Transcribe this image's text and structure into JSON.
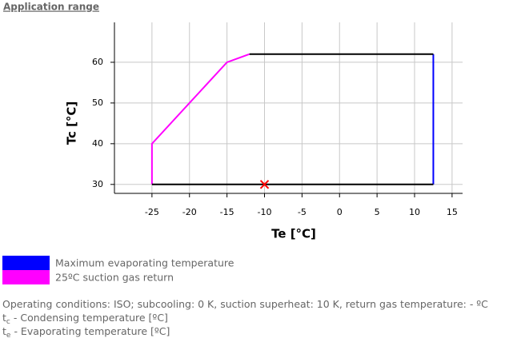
{
  "chart_data": {
    "type": "line",
    "title": "Application range",
    "x_label": "Te [°C]",
    "y_label": "Tc [°C]",
    "xlim": [
      -30,
      16.4
    ],
    "ylim": [
      27.8,
      69.8
    ],
    "xticks": [
      -25,
      -20,
      -15,
      -10,
      -5,
      0,
      5,
      10,
      15
    ],
    "yticks": [
      30,
      40,
      50,
      60
    ],
    "grid": true,
    "series": [
      {
        "name": "Maximum evaporating temperature",
        "color": "#0000ff",
        "x": [
          12.5,
          12.5
        ],
        "values": [
          62,
          30
        ]
      },
      {
        "name": "25ºC suction gas return",
        "color": "#ff00ff",
        "x": [
          -25,
          -25,
          -15,
          -12
        ],
        "values": [
          30,
          40,
          60,
          62
        ]
      },
      {
        "color": "#000000",
        "x": [
          -12,
          12.5
        ],
        "values": [
          62,
          62
        ]
      },
      {
        "color": "#000000",
        "x": [
          12.5,
          -25
        ],
        "values": [
          30,
          30
        ]
      }
    ],
    "points": [
      {
        "color": "#ff0000",
        "x": -10,
        "y": 30
      }
    ],
    "notes": [
      {
        "text": "Operating conditions: ISO; subcooling: 0 K, suction superheat: 10 K, return gas temperature: - ºC"
      },
      {
        "symbol": "t",
        "subscript": "c",
        "text": "- Condensing temperature [ºC]"
      },
      {
        "symbol": "t",
        "subscript": "e",
        "text": "- Evaporating temperature [ºC]"
      }
    ]
  }
}
